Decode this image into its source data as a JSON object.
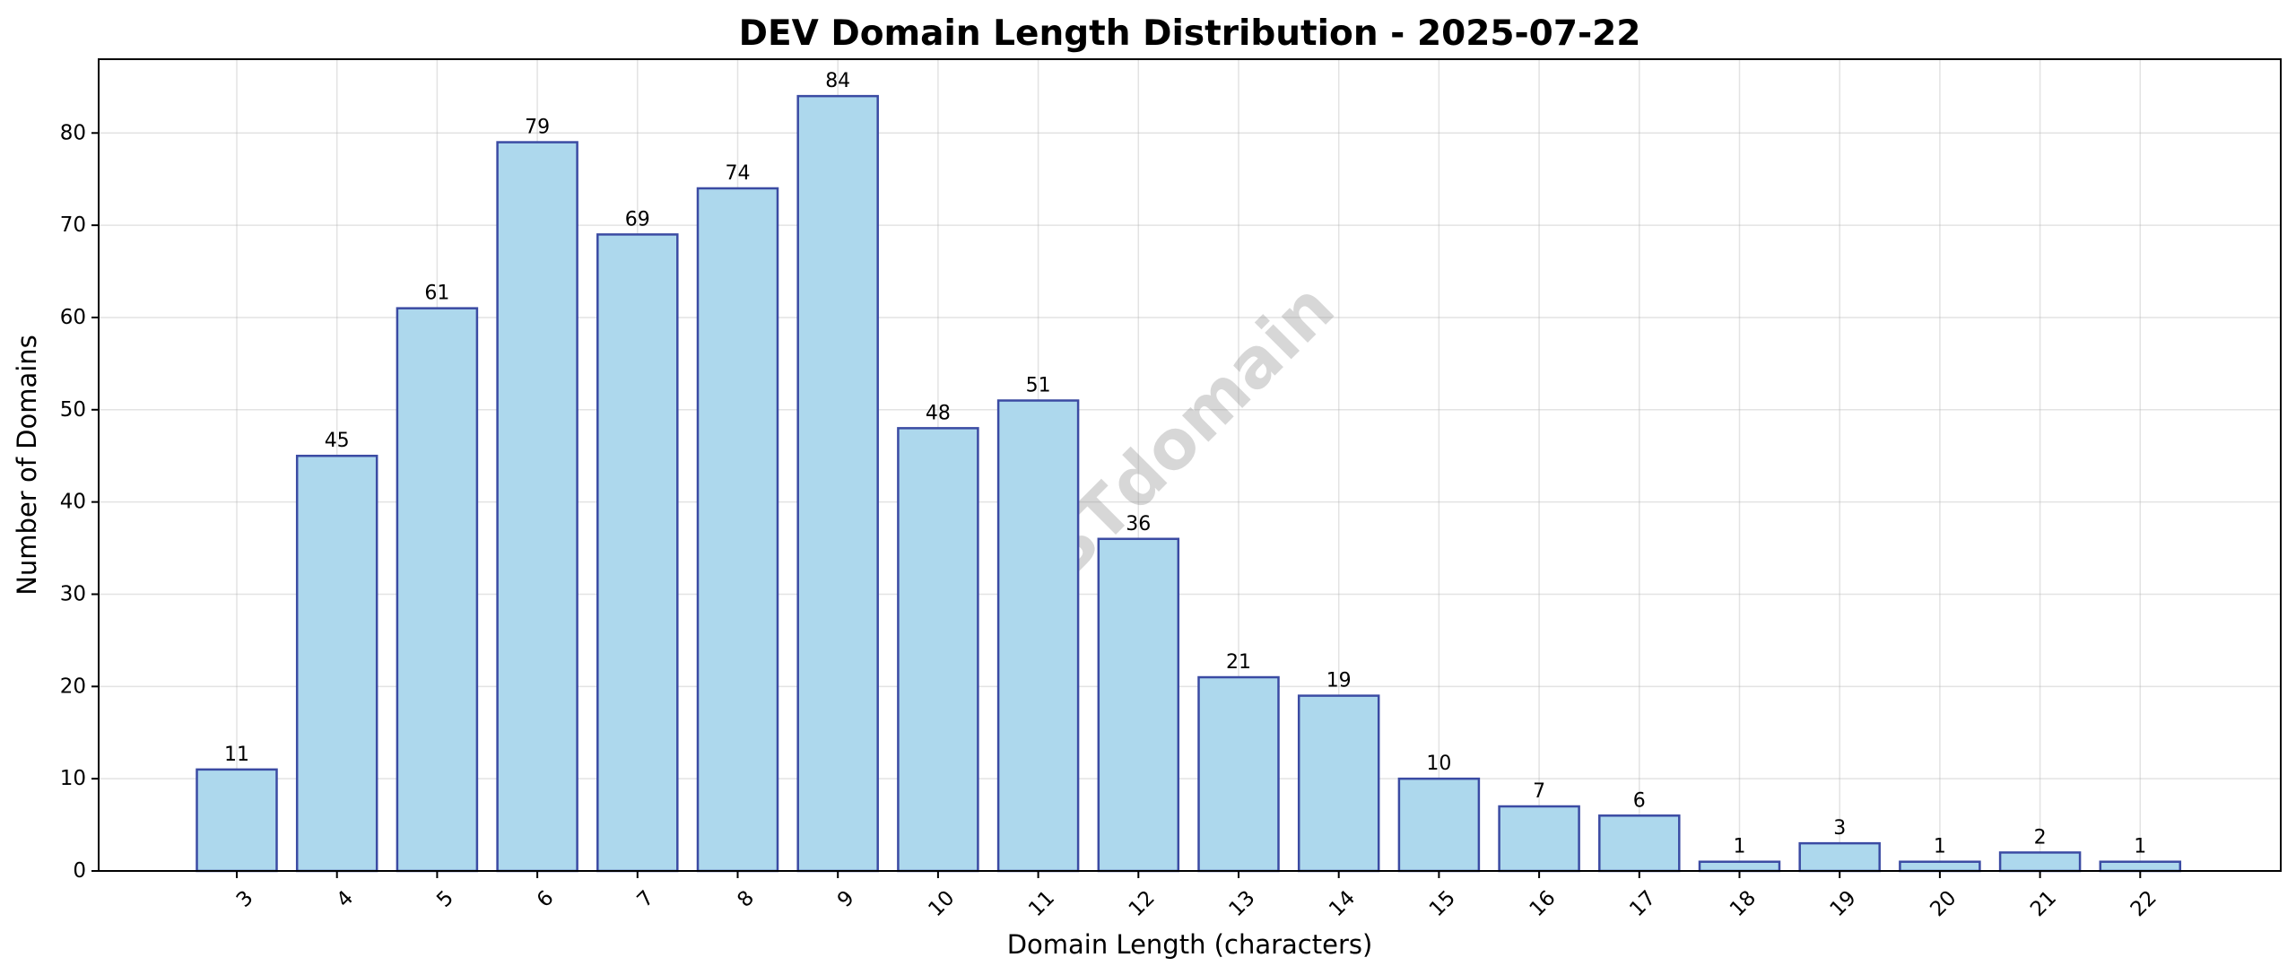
{
  "chart_data": {
    "type": "bar",
    "title": "DEV Domain Length Distribution - 2025-07-22",
    "xlabel": "Domain Length (characters)",
    "ylabel": "Number of Domains",
    "categories": [
      "3",
      "4",
      "5",
      "6",
      "7",
      "8",
      "9",
      "10",
      "11",
      "12",
      "13",
      "14",
      "15",
      "16",
      "17",
      "18",
      "19",
      "20",
      "21",
      "22"
    ],
    "values": [
      11,
      45,
      61,
      79,
      69,
      74,
      84,
      48,
      51,
      36,
      21,
      19,
      10,
      7,
      6,
      1,
      3,
      1,
      2,
      1
    ],
    "ylim": [
      0,
      88
    ],
    "yticks": [
      0,
      10,
      20,
      30,
      40,
      50,
      60,
      70,
      80
    ],
    "xtick_rotation": 45,
    "grid": true,
    "show_data_labels": true,
    "bar_color": "#add8ed",
    "bar_edge_color": "#3b4ba3",
    "watermark": "ABTdomain"
  }
}
